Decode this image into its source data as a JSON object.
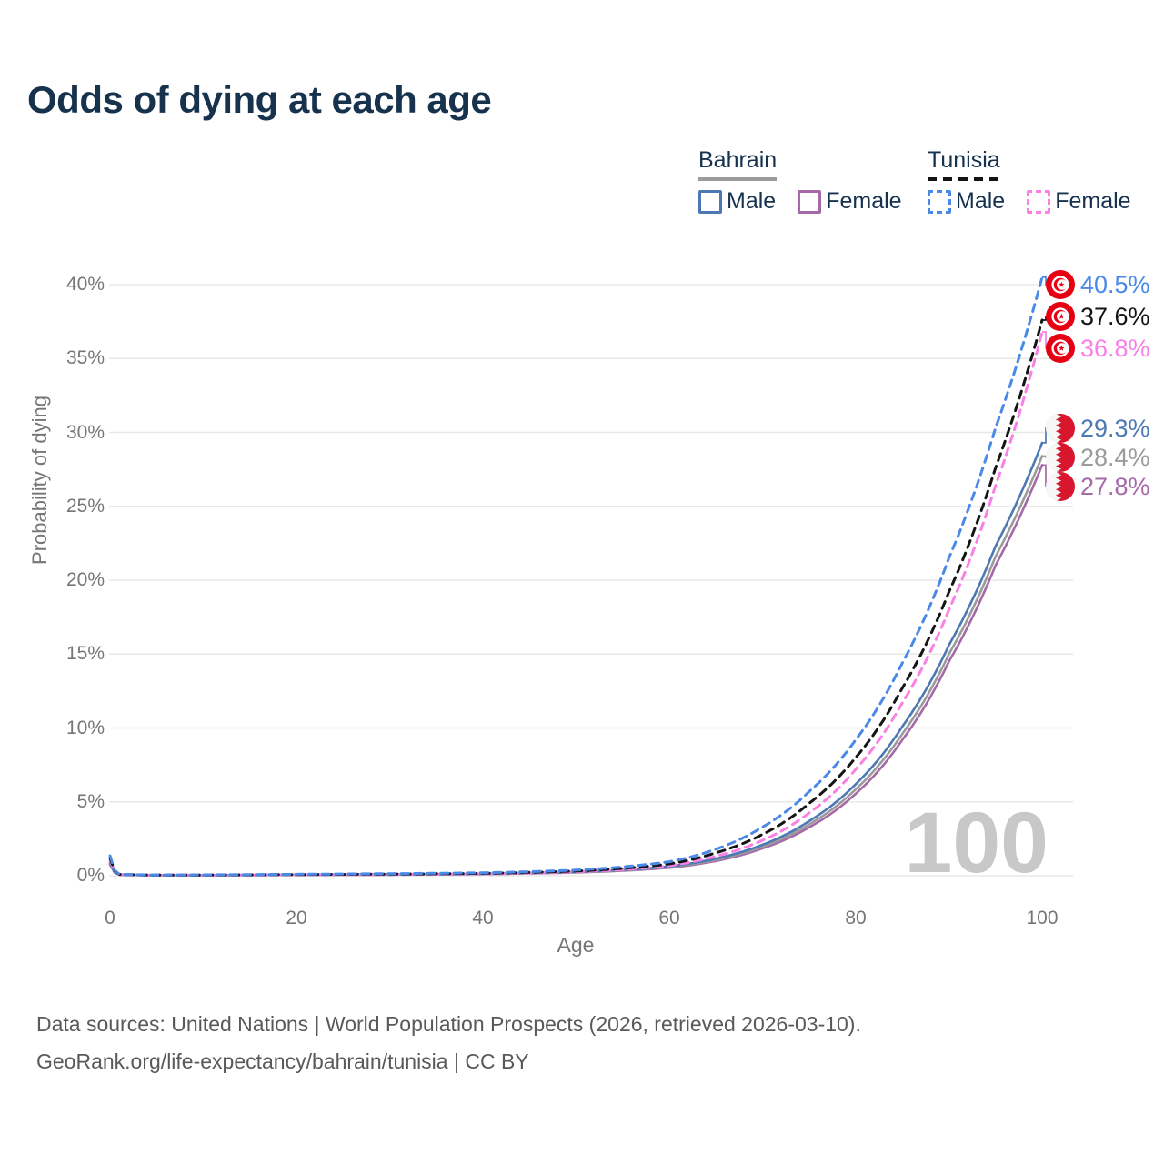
{
  "title": "Odds of dying at each age",
  "watermark": "100",
  "legend": {
    "groups": [
      {
        "name": "Bahrain",
        "line_style": "solid",
        "underline_color": "#9b9b9b",
        "items": [
          {
            "label": "Male",
            "color": "#4d78b4"
          },
          {
            "label": "Female",
            "color": "#a569a8"
          }
        ]
      },
      {
        "name": "Tunisia",
        "line_style": "dashed",
        "underline_color": "#141414",
        "items": [
          {
            "label": "Male",
            "color": "#4a89e8"
          },
          {
            "label": "Female",
            "color": "#fa80e6"
          }
        ]
      }
    ]
  },
  "footer": {
    "line1": "Data sources: United Nations | World Population Prospects (2026, retrieved 2026-03-10).",
    "line2": "GeoRank.org/life-expectancy/bahrain/tunisia | CC BY"
  },
  "chart_data": {
    "type": "line",
    "title": "Odds of dying at each age",
    "xlabel": "Age",
    "ylabel": "Probability of dying",
    "xlim": [
      0,
      100
    ],
    "ylim_percent": [
      0,
      42
    ],
    "x_ticks": [
      0,
      20,
      40,
      60,
      80,
      100
    ],
    "y_ticks_percent": [
      0,
      5,
      10,
      15,
      20,
      25,
      30,
      35,
      40
    ],
    "grid": "horizontal",
    "ages_anchor": [
      0,
      1,
      5,
      10,
      20,
      30,
      40,
      50,
      55,
      60,
      65,
      70,
      75,
      80,
      85,
      90,
      95,
      100
    ],
    "series": [
      {
        "name": "Tunisia Male",
        "flag": "tunisia",
        "color": "#4a89e8",
        "dashed": true,
        "end_label": "40.5%",
        "values_percent": [
          1.35,
          0.1,
          0.05,
          0.06,
          0.1,
          0.14,
          0.2,
          0.38,
          0.6,
          0.95,
          1.8,
          3.3,
          5.7,
          9.2,
          14.4,
          21.5,
          30.3,
          40.5
        ]
      },
      {
        "name": "Tunisia",
        "flag": "tunisia",
        "color": "#141414",
        "dashed": true,
        "end_label": "37.6%",
        "values_percent": [
          1.2,
          0.09,
          0.045,
          0.05,
          0.08,
          0.11,
          0.16,
          0.32,
          0.5,
          0.8,
          1.55,
          2.8,
          4.9,
          8.0,
          12.7,
          19.2,
          27.6,
          37.6
        ]
      },
      {
        "name": "Tunisia Female",
        "flag": "tunisia",
        "color": "#fa80e6",
        "dashed": true,
        "end_label": "36.8%",
        "values_percent": [
          1.05,
          0.08,
          0.04,
          0.045,
          0.065,
          0.09,
          0.13,
          0.27,
          0.42,
          0.68,
          1.32,
          2.4,
          4.25,
          7.2,
          11.7,
          18.0,
          26.4,
          36.8
        ]
      },
      {
        "name": "Bahrain Male",
        "flag": "bahrain",
        "color": "#4d78b4",
        "dashed": false,
        "end_label": "29.3%",
        "values_percent": [
          0.9,
          0.07,
          0.035,
          0.04,
          0.07,
          0.09,
          0.13,
          0.26,
          0.4,
          0.63,
          1.16,
          2.1,
          3.7,
          6.2,
          10.1,
          15.6,
          22.3,
          29.3
        ]
      },
      {
        "name": "Bahrain",
        "flag": "bahrain",
        "color": "#9b9b9b",
        "dashed": false,
        "end_label": "28.4%",
        "values_percent": [
          0.82,
          0.065,
          0.03,
          0.035,
          0.06,
          0.08,
          0.12,
          0.24,
          0.37,
          0.58,
          1.08,
          1.97,
          3.48,
          5.85,
          9.6,
          15.0,
          21.6,
          28.4
        ]
      },
      {
        "name": "Bahrain Female",
        "flag": "bahrain",
        "color": "#a569a8",
        "dashed": false,
        "end_label": "27.8%",
        "values_percent": [
          0.75,
          0.06,
          0.028,
          0.03,
          0.05,
          0.07,
          0.11,
          0.22,
          0.34,
          0.54,
          1.0,
          1.85,
          3.28,
          5.55,
          9.2,
          14.5,
          21.0,
          27.8
        ]
      }
    ]
  }
}
